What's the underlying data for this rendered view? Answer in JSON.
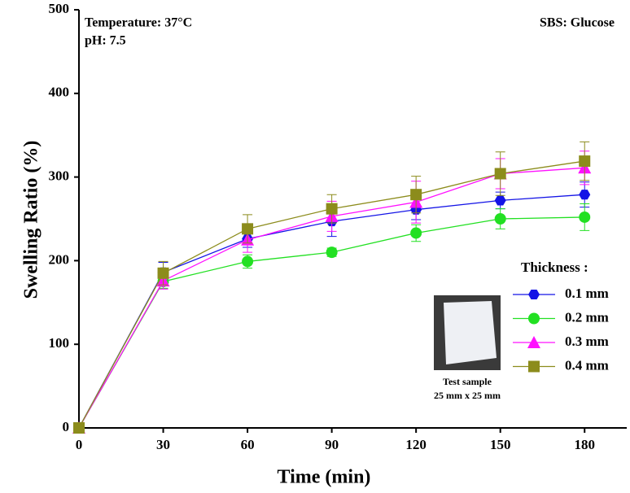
{
  "chart_data": {
    "type": "line",
    "x_label": "Time (min)",
    "y_label": "Swelling Ratio (%)",
    "x": [
      0,
      30,
      60,
      90,
      120,
      150,
      180
    ],
    "xlim": [
      0,
      195
    ],
    "xticks": [
      0,
      30,
      60,
      90,
      120,
      150,
      180
    ],
    "ylim": [
      0,
      500
    ],
    "yticks": [
      0,
      100,
      200,
      300,
      400,
      500
    ],
    "legend_title": "Thickness :",
    "legend": "lower right",
    "annotations": [
      "Temperature: 37°C",
      "pH: 7.5",
      "SBS: Glucose",
      "Test sample",
      "25 mm x 25 mm"
    ],
    "series": [
      {
        "name": "0.1 mm",
        "color": "#1414e6",
        "marker": "hexagon",
        "values": [
          0,
          186,
          226,
          247,
          261,
          272,
          279
        ],
        "errors": [
          0,
          12,
          10,
          18,
          12,
          10,
          15
        ]
      },
      {
        "name": "0.2 mm",
        "color": "#22e022",
        "marker": "circle",
        "values": [
          0,
          175,
          199,
          210,
          233,
          250,
          252
        ],
        "errors": [
          0,
          8,
          8,
          5,
          10,
          12,
          16
        ]
      },
      {
        "name": "0.3 mm",
        "color": "#ff10ff",
        "marker": "triangle",
        "values": [
          0,
          176,
          225,
          253,
          270,
          304,
          311
        ],
        "errors": [
          0,
          10,
          15,
          18,
          25,
          18,
          20
        ]
      },
      {
        "name": "0.4 mm",
        "color": "#8c8c1c",
        "marker": "square",
        "values": [
          0,
          185,
          238,
          262,
          279,
          304,
          319
        ],
        "errors": [
          0,
          14,
          17,
          17,
          22,
          26,
          23
        ]
      }
    ]
  }
}
